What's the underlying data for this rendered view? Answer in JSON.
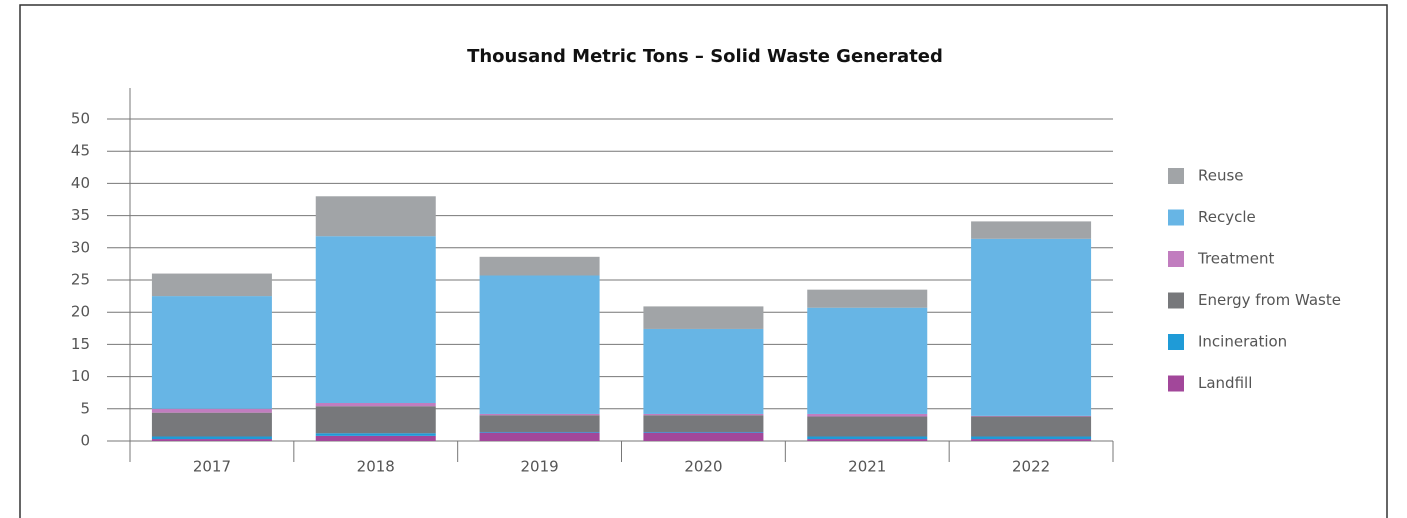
{
  "chart_data": {
    "type": "bar",
    "stacked": true,
    "title": "Thousand Metric Tons – Solid Waste Generated",
    "categories": [
      "2017",
      "2018",
      "2019",
      "2020",
      "2021",
      "2022"
    ],
    "series": [
      {
        "name": "Landfill",
        "color": "#a2479a",
        "values": [
          0.3,
          0.8,
          1.3,
          1.3,
          0.3,
          0.3
        ]
      },
      {
        "name": "Incineration",
        "color": "#1f9bd7",
        "values": [
          0.4,
          0.4,
          0.1,
          0.1,
          0.4,
          0.4
        ]
      },
      {
        "name": "Energy from Waste",
        "color": "#77787b",
        "values": [
          3.7,
          4.2,
          2.6,
          2.6,
          3.1,
          3.1
        ]
      },
      {
        "name": "Treatment",
        "color": "#c17dbf",
        "values": [
          0.6,
          0.5,
          0.2,
          0.2,
          0.4,
          0.1
        ]
      },
      {
        "name": "Recycle",
        "color": "#67b5e5",
        "values": [
          17.5,
          25.9,
          21.5,
          13.2,
          16.5,
          27.5
        ]
      },
      {
        "name": "Reuse",
        "color": "#a1a4a7",
        "values": [
          3.5,
          6.2,
          2.9,
          3.5,
          2.8,
          2.7
        ]
      }
    ],
    "ylim": [
      0,
      50
    ],
    "yticks": [
      0,
      5,
      10,
      15,
      20,
      25,
      30,
      35,
      40,
      45,
      50
    ],
    "grid": true,
    "legend": "right"
  }
}
